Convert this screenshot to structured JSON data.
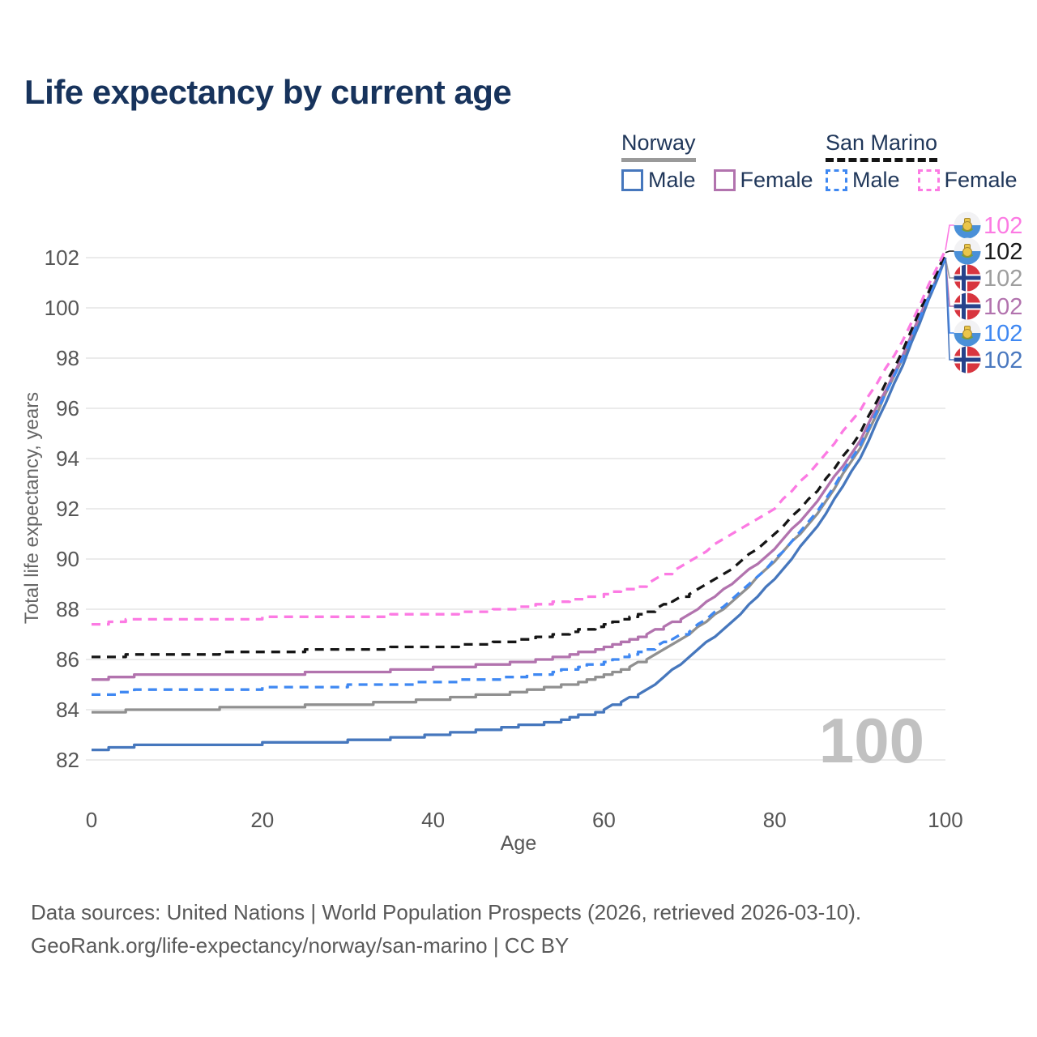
{
  "page": {
    "title": "Life expectancy by current age",
    "footer": {
      "line1": "Data sources: United Nations | World Population Prospects (2026, retrieved 2026-03-10).",
      "line2": "GeoRank.org/life-expectancy/norway/san-marino | CC BY"
    }
  },
  "legend": {
    "groups": [
      {
        "country": "Norway",
        "underline": "solid",
        "underline_color": "#9a9a9a",
        "items": [
          {
            "label": "Male",
            "color": "#4677bd",
            "dash": false
          },
          {
            "label": "Female",
            "color": "#b273ae",
            "dash": false
          }
        ]
      },
      {
        "country": "San Marino",
        "underline": "dashed",
        "underline_color": "#151515",
        "items": [
          {
            "label": "Male",
            "color": "#3f88f2",
            "dash": true
          },
          {
            "label": "Female",
            "color": "#fc7ae3",
            "dash": true
          }
        ]
      }
    ]
  },
  "chart_data": {
    "type": "line",
    "title": "Life expectancy by current age",
    "xlabel": "Age",
    "ylabel": "Total life expectancy, years",
    "xlim": [
      0,
      100
    ],
    "ylim": [
      82,
      102.5
    ],
    "xticks": [
      0,
      20,
      40,
      60,
      80,
      100
    ],
    "yticks": [
      82,
      84,
      86,
      88,
      90,
      92,
      94,
      96,
      98,
      100,
      102
    ],
    "grid": "horizontal",
    "legend_position": "top-right",
    "hover_age_watermark": "100",
    "x": [
      0,
      5,
      10,
      15,
      20,
      25,
      30,
      35,
      40,
      45,
      50,
      55,
      60,
      65,
      70,
      75,
      80,
      85,
      90,
      95,
      100
    ],
    "series": [
      {
        "name": "Norway Male",
        "country": "Norway",
        "sex": "male",
        "style": "solid",
        "color": "#4677bd",
        "values": [
          82.4,
          82.55,
          82.55,
          82.6,
          82.65,
          82.7,
          82.75,
          82.85,
          83.0,
          83.15,
          83.35,
          83.6,
          84.0,
          84.75,
          86.1,
          87.5,
          89.2,
          91.3,
          94.0,
          97.7,
          102.0
        ]
      },
      {
        "name": "Norway Female",
        "country": "Norway",
        "sex": "female",
        "style": "solid",
        "color": "#b273ae",
        "values": [
          85.2,
          85.35,
          85.35,
          85.4,
          85.4,
          85.45,
          85.5,
          85.55,
          85.65,
          85.75,
          85.9,
          86.1,
          86.5,
          87.0,
          87.8,
          89.0,
          90.4,
          92.3,
          94.7,
          98.1,
          102.0
        ]
      },
      {
        "name": "Norway Both sexes",
        "country": "Norway",
        "sex": "both",
        "style": "solid",
        "color": "#909090",
        "values": [
          83.85,
          84.0,
          84.0,
          84.05,
          84.1,
          84.15,
          84.2,
          84.3,
          84.4,
          84.55,
          84.7,
          84.95,
          85.35,
          86.0,
          87.0,
          88.3,
          89.9,
          91.8,
          94.4,
          98.0,
          102.0
        ]
      },
      {
        "name": "San Marino Male",
        "country": "San Marino",
        "sex": "male",
        "style": "dashed",
        "color": "#3f88f2",
        "values": [
          84.55,
          84.75,
          84.8,
          84.8,
          84.85,
          84.9,
          84.95,
          85.0,
          85.1,
          85.2,
          85.3,
          85.55,
          85.9,
          86.4,
          87.1,
          88.4,
          89.95,
          91.9,
          94.5,
          98.0,
          102.0
        ]
      },
      {
        "name": "San Marino Female",
        "country": "San Marino",
        "sex": "female",
        "style": "dashed",
        "color": "#fc7ae3",
        "values": [
          87.4,
          87.6,
          87.6,
          87.6,
          87.65,
          87.7,
          87.7,
          87.75,
          87.8,
          87.9,
          88.05,
          88.3,
          88.6,
          89.0,
          89.9,
          91.0,
          92.0,
          93.8,
          95.9,
          98.7,
          102.3
        ]
      },
      {
        "name": "San Marino Both sexes",
        "country": "San Marino",
        "sex": "both",
        "style": "dashed",
        "color": "#151515",
        "values": [
          86.05,
          86.2,
          86.2,
          86.25,
          86.3,
          86.35,
          86.35,
          86.45,
          86.5,
          86.6,
          86.75,
          87.0,
          87.4,
          87.9,
          88.6,
          89.6,
          91.0,
          92.7,
          95.0,
          98.3,
          102.2
        ]
      }
    ],
    "end_labels": [
      {
        "series": "San Marino Female",
        "flag": "san-marino",
        "value": "102",
        "color": "#fc7ae3"
      },
      {
        "series": "San Marino Both sexes",
        "flag": "san-marino",
        "value": "102",
        "color": "#1a1a1a"
      },
      {
        "series": "Norway Both sexes",
        "flag": "norway",
        "value": "102",
        "color": "#9e9e9e"
      },
      {
        "series": "Norway Female",
        "flag": "norway",
        "value": "102",
        "color": "#b273ae"
      },
      {
        "series": "San Marino Male",
        "flag": "san-marino",
        "value": "102",
        "color": "#3f88f2"
      },
      {
        "series": "Norway Male",
        "flag": "norway",
        "value": "102",
        "color": "#4a78bf"
      }
    ]
  }
}
